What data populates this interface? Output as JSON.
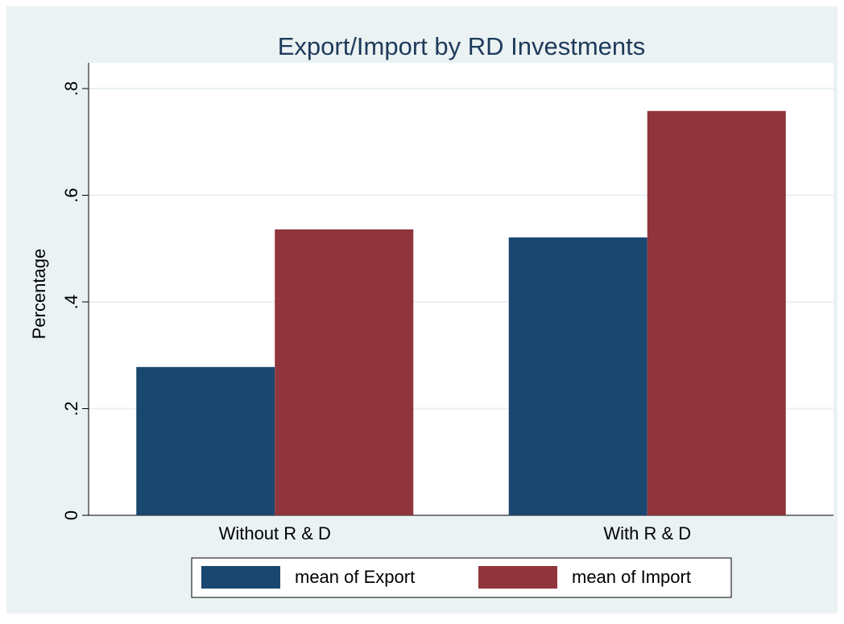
{
  "chart_data": {
    "type": "bar",
    "title": "Export/Import by RD Investments",
    "ylabel": "Percentage",
    "categories": [
      "Without R & D",
      "With R & D"
    ],
    "series": [
      {
        "name": "mean of Export",
        "color": "#1a476f",
        "values": [
          0.278,
          0.521
        ]
      },
      {
        "name": "mean of Import",
        "color": "#90353b",
        "values": [
          0.536,
          0.758
        ]
      }
    ],
    "ylim": [
      0,
      0.8
    ],
    "yticks": [
      0,
      {
        "value": 0.2,
        "label": ".2"
      },
      {
        "value": 0.4,
        "label": ".4"
      },
      {
        "value": 0.6,
        "label": ".6"
      },
      {
        "value": 0.8,
        "label": ".8"
      }
    ],
    "grid": true,
    "legend": "bottom"
  }
}
